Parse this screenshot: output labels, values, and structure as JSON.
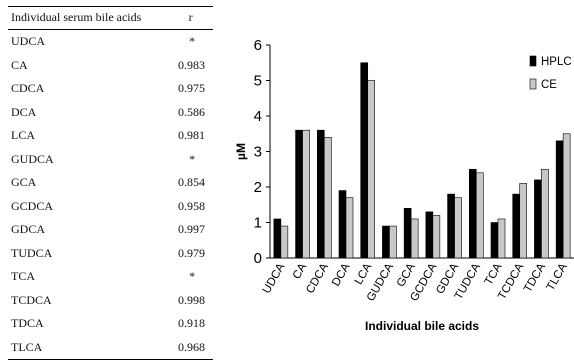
{
  "table": {
    "headers": [
      "Individual serum bile acids",
      "r"
    ],
    "rows": [
      {
        "acid": "UDCA",
        "r": "*"
      },
      {
        "acid": "CA",
        "r": "0.983"
      },
      {
        "acid": "CDCA",
        "r": "0.975"
      },
      {
        "acid": "DCA",
        "r": "0.586"
      },
      {
        "acid": "LCA",
        "r": "0.981"
      },
      {
        "acid": "GUDCA",
        "r": "*"
      },
      {
        "acid": "GCA",
        "r": "0.854"
      },
      {
        "acid": "GCDCA",
        "r": "0.958"
      },
      {
        "acid": "GDCA",
        "r": "0.997"
      },
      {
        "acid": "TUDCA",
        "r": "0.979"
      },
      {
        "acid": "TCA",
        "r": "*"
      },
      {
        "acid": "TCDCA",
        "r": "0.998"
      },
      {
        "acid": "TDCA",
        "r": "0.918"
      },
      {
        "acid": "TLCA",
        "r": "0.968"
      }
    ]
  },
  "chart_data": {
    "type": "bar",
    "title": "",
    "xlabel": "Individual bile acids",
    "ylabel": "µM",
    "ylim": [
      0,
      6
    ],
    "yticks": [
      0,
      1,
      2,
      3,
      4,
      5,
      6
    ],
    "grid": false,
    "legend_position": "top-right",
    "categories": [
      "UDCA",
      "CA",
      "CDCA",
      "DCA",
      "LCA",
      "GUDCA",
      "GCA",
      "GCDCA",
      "GDCA",
      "TUDCA",
      "TCA",
      "TCDCA",
      "TDCA",
      "TLCA"
    ],
    "series": [
      {
        "name": "HPLC",
        "color": "#000000",
        "values": [
          1.1,
          3.6,
          3.6,
          1.9,
          5.5,
          0.9,
          1.4,
          1.3,
          1.8,
          2.5,
          1.0,
          1.8,
          2.2,
          3.3
        ]
      },
      {
        "name": "CE",
        "color": "#c8c8c8",
        "values": [
          0.9,
          3.6,
          3.4,
          1.7,
          5.0,
          0.9,
          1.1,
          1.2,
          1.7,
          2.4,
          1.1,
          2.1,
          2.5,
          3.5
        ]
      }
    ]
  }
}
